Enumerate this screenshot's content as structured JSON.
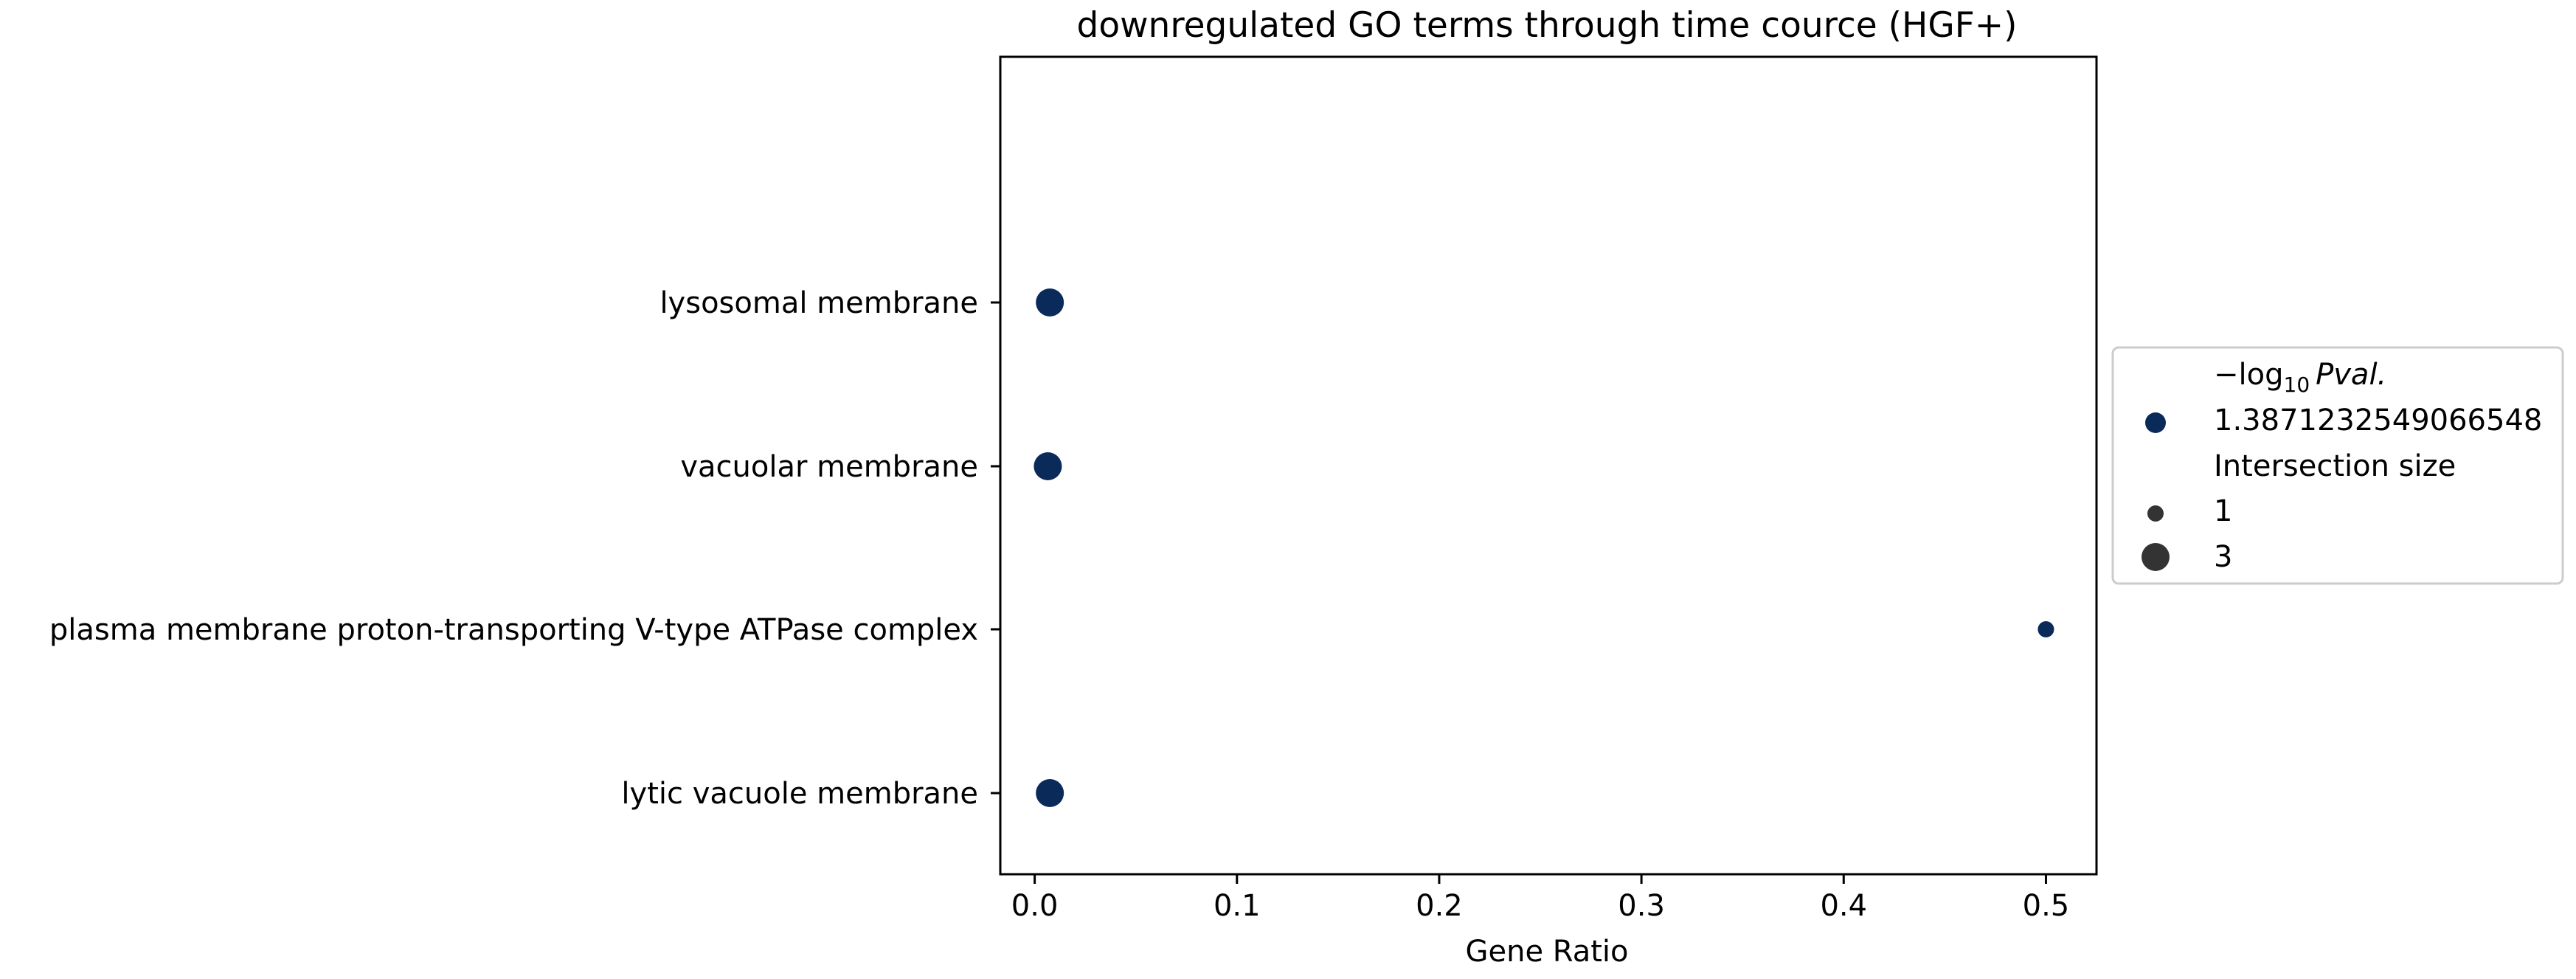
{
  "chart_data": {
    "type": "scatter",
    "title": "downregulated GO terms through time cource (HGF+)",
    "xlabel": "Gene Ratio",
    "ylabel": "",
    "xlim": [
      -0.017,
      0.525
    ],
    "xticks": [
      0.0,
      0.1,
      0.2,
      0.3,
      0.4,
      0.5
    ],
    "xtick_labels": [
      "0.0",
      "0.1",
      "0.2",
      "0.3",
      "0.4",
      "0.5"
    ],
    "categories": [
      "lysosomal membrane",
      "vacuolar membrane",
      "plasma membrane proton-transporting V-type ATPase complex",
      "lytic vacuole membrane"
    ],
    "points": [
      {
        "term": "lysosomal membrane",
        "gene_ratio": 0.0075,
        "neg_log10_pval": 1.3871232549066548,
        "intersection_size": 3
      },
      {
        "term": "vacuolar membrane",
        "gene_ratio": 0.0065,
        "neg_log10_pval": 1.3871232549066548,
        "intersection_size": 3
      },
      {
        "term": "plasma membrane proton-transporting V-type ATPase complex",
        "gene_ratio": 0.5,
        "neg_log10_pval": 1.3871232549066548,
        "intersection_size": 1
      },
      {
        "term": "lytic vacuole membrane",
        "gene_ratio": 0.0075,
        "neg_log10_pval": 1.3871232549066548,
        "intersection_size": 3
      }
    ],
    "grid": false,
    "legend": {
      "placement": "right",
      "color_title_prefix": "−log",
      "color_title_sub": "10",
      "color_title_suffix": "Pval.",
      "color_entry": "1.3871232549066548",
      "size_title": "Intersection size",
      "size_entries": [
        "1",
        "3"
      ]
    },
    "point_color": "#0a2a5a",
    "size_legend_color": "#333333"
  }
}
